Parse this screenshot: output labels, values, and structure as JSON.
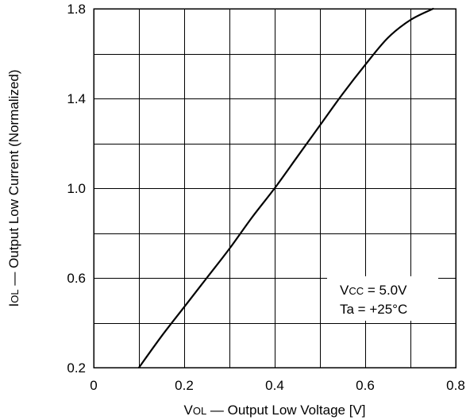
{
  "chart_data": {
    "type": "line",
    "title": "",
    "xlabel": {
      "main_prefix": "V",
      "sub": "OL",
      "rest": " — Output Low Voltage [V]"
    },
    "ylabel": {
      "main_prefix": "I",
      "sub": "OL",
      "rest": " — Output Low Current (Normalized)"
    },
    "xlim": [
      0,
      0.8
    ],
    "ylim": [
      0.2,
      1.8
    ],
    "x_ticks": [
      0,
      0.2,
      0.4,
      0.6,
      0.8
    ],
    "x_tick_labels": [
      "0",
      "0.2",
      "0.4",
      "0.6",
      "0.8"
    ],
    "y_ticks": [
      0.2,
      0.6,
      1.0,
      1.4,
      1.8
    ],
    "y_tick_labels": [
      "0.2",
      "0.6",
      "1.0",
      "1.4",
      "1.8"
    ],
    "grid": true,
    "grid_x_step": 0.1,
    "grid_y_step": 0.2,
    "series": [
      {
        "x": [
          0.1,
          0.15,
          0.2,
          0.25,
          0.3,
          0.35,
          0.4,
          0.45,
          0.5,
          0.55,
          0.6,
          0.65,
          0.7,
          0.75
        ],
        "y": [
          0.2,
          0.34,
          0.47,
          0.6,
          0.73,
          0.87,
          1.0,
          1.14,
          1.28,
          1.42,
          1.55,
          1.67,
          1.75,
          1.8
        ],
        "color": "#000000"
      }
    ],
    "annotations": [
      {
        "main": "V",
        "sub": "CC",
        "rest": " = 5.0V"
      },
      {
        "main": "Ta = +25°C",
        "sub": "",
        "rest": ""
      }
    ]
  }
}
